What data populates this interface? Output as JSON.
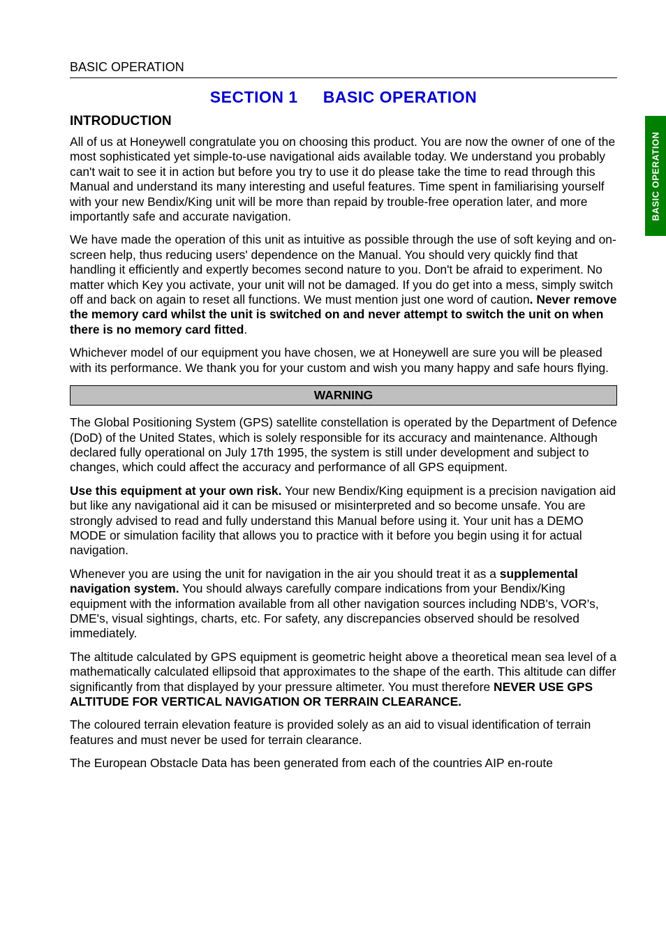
{
  "header": {
    "running_head": "BASIC OPERATION"
  },
  "side_tab": {
    "label": "BASIC OPERATION",
    "bg_color": "#008000",
    "text_color": "#ffffff"
  },
  "title": {
    "section_label": "SECTION 1",
    "section_name": "BASIC OPERATION",
    "color": "#0000cc"
  },
  "introduction": {
    "heading": "INTRODUCTION",
    "para1": "All of us at Honeywell congratulate you on choosing this product.  You are now the owner of one of the most sophisticated yet simple-to-use navigational aids available today.  We understand you probably can't wait to see it in action but before you try to use it do please take the time to read through this Manual and understand its many interesting and useful features.  Time spent in familiarising yourself with your new Bendix/King unit will be more than repaid by trouble-free operation later, and more importantly safe and accurate navigation.",
    "para2_pre": "We have made the operation of this unit as intuitive as possible through the use of soft keying and on-screen help, thus reducing users' dependence on the Manual.  You should very quickly find that handling it efficiently and expertly becomes second nature to you.  Don't be afraid to experiment.  No matter which Key you activate, your unit will not be damaged.  If you do get into a mess, simply switch off and back on again to reset all functions.  We must mention just one word of caution",
    "para2_bold": ".  Never remove the memory card whilst the unit is switched on and never attempt to switch the unit on when there is no memory card fitted",
    "para2_post": ".",
    "para3": "Whichever model of our equipment you have chosen, we at Honeywell are sure you will be pleased with its performance. We thank you for your custom and wish you many happy and safe hours flying."
  },
  "warning": {
    "box_label": "WARNING",
    "box_bg": "#bfbfbf",
    "para1": "The Global Positioning System (GPS) satellite constellation is operated by the Department of Defence (DoD) of the United States, which is solely responsible for its accuracy and maintenance.  Although declared fully operational on July 17th 1995, the system is still under development and subject to changes, which could affect the accuracy and performance of all GPS equipment.",
    "para2_bold": "Use this equipment at your own risk.",
    "para2_rest": "  Your new Bendix/King equipment is a precision navigation aid but like any navigational aid it can be misused or misinterpreted and so become unsafe. You are strongly advised to read and fully understand this Manual before using it.  Your unit has a DEMO MODE or simulation facility that allows you to practice with it before you begin using it for actual navigation.",
    "para3_pre": "Whenever you are using the unit for navigation in the air you should treat it as a ",
    "para3_bold": "supplemental navigation system.",
    "para3_post": " You should always carefully compare indications from your Bendix/King equipment with the information available from all other navigation sources including NDB's, VOR's, DME's, visual sightings, charts, etc.  For safety, any discrepancies observed should be resolved immediately.",
    "para4_pre": "The altitude calculated by GPS equipment is geometric height above a theoretical mean sea level of a mathematically calculated ellipsoid that approximates to the shape of the earth.  This altitude can differ significantly from that displayed by your pressure altimeter.  You must therefore ",
    "para4_bold": "NEVER USE GPS ALTITUDE FOR VERTICAL NAVIGATION OR TERRAIN CLEARANCE.",
    "para5": "The coloured terrain elevation feature is provided solely as an aid to visual identification of terrain features and must never be used for terrain clearance.",
    "para6": "The European Obstacle Data has been generated from each of the countries AIP en-route"
  }
}
